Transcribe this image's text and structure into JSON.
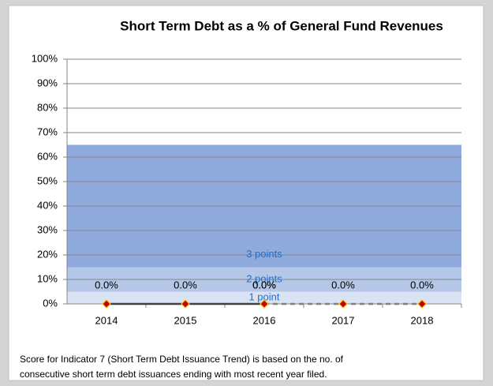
{
  "chart_data": {
    "type": "line",
    "title": "Short Term Debt as a % of General Fund Revenues",
    "categories": [
      "2014",
      "2015",
      "2016",
      "2017",
      "2018"
    ],
    "series": [
      {
        "color": "#404040",
        "dash": false,
        "values": [
          0,
          0,
          0,
          null,
          null
        ],
        "value_labels": [
          "0.0%",
          "0.0%",
          "0.0%",
          null,
          null
        ]
      },
      {
        "color": "#808080",
        "dash": true,
        "values": [
          null,
          null,
          0,
          0,
          0
        ],
        "value_labels": [
          null,
          null,
          "0.0%",
          "0.0%",
          "0.0%"
        ]
      }
    ],
    "marker_color": "#c00000",
    "marker_edge": "#ffc000",
    "bands": [
      {
        "label": "1 point",
        "from": 0,
        "to": 5,
        "color": "#dae3f3"
      },
      {
        "label": "2 points",
        "from": 5,
        "to": 15,
        "color": "#b4c7e7"
      },
      {
        "label": "3 points",
        "from": 15,
        "to": 65,
        "color": "#8faadc"
      }
    ],
    "ylim": [
      0,
      100
    ],
    "yticks": [
      {
        "value": 0,
        "label": "0%"
      },
      {
        "value": 10,
        "label": "10%"
      },
      {
        "value": 20,
        "label": "20%"
      },
      {
        "value": 30,
        "label": "30%"
      },
      {
        "value": 40,
        "label": "40%"
      },
      {
        "value": 50,
        "label": "50%"
      },
      {
        "value": 60,
        "label": "60%"
      },
      {
        "value": 70,
        "label": "70%"
      },
      {
        "value": 80,
        "label": "80%"
      },
      {
        "value": 90,
        "label": "90%"
      },
      {
        "value": 100,
        "label": "100%"
      }
    ],
    "grid": true,
    "footnote": [
      "Score for Indicator 7 (Short Term Debt Issuance Trend)  is based on the no. of",
      "consecutive short term debt issuances ending with most recent year filed."
    ]
  }
}
